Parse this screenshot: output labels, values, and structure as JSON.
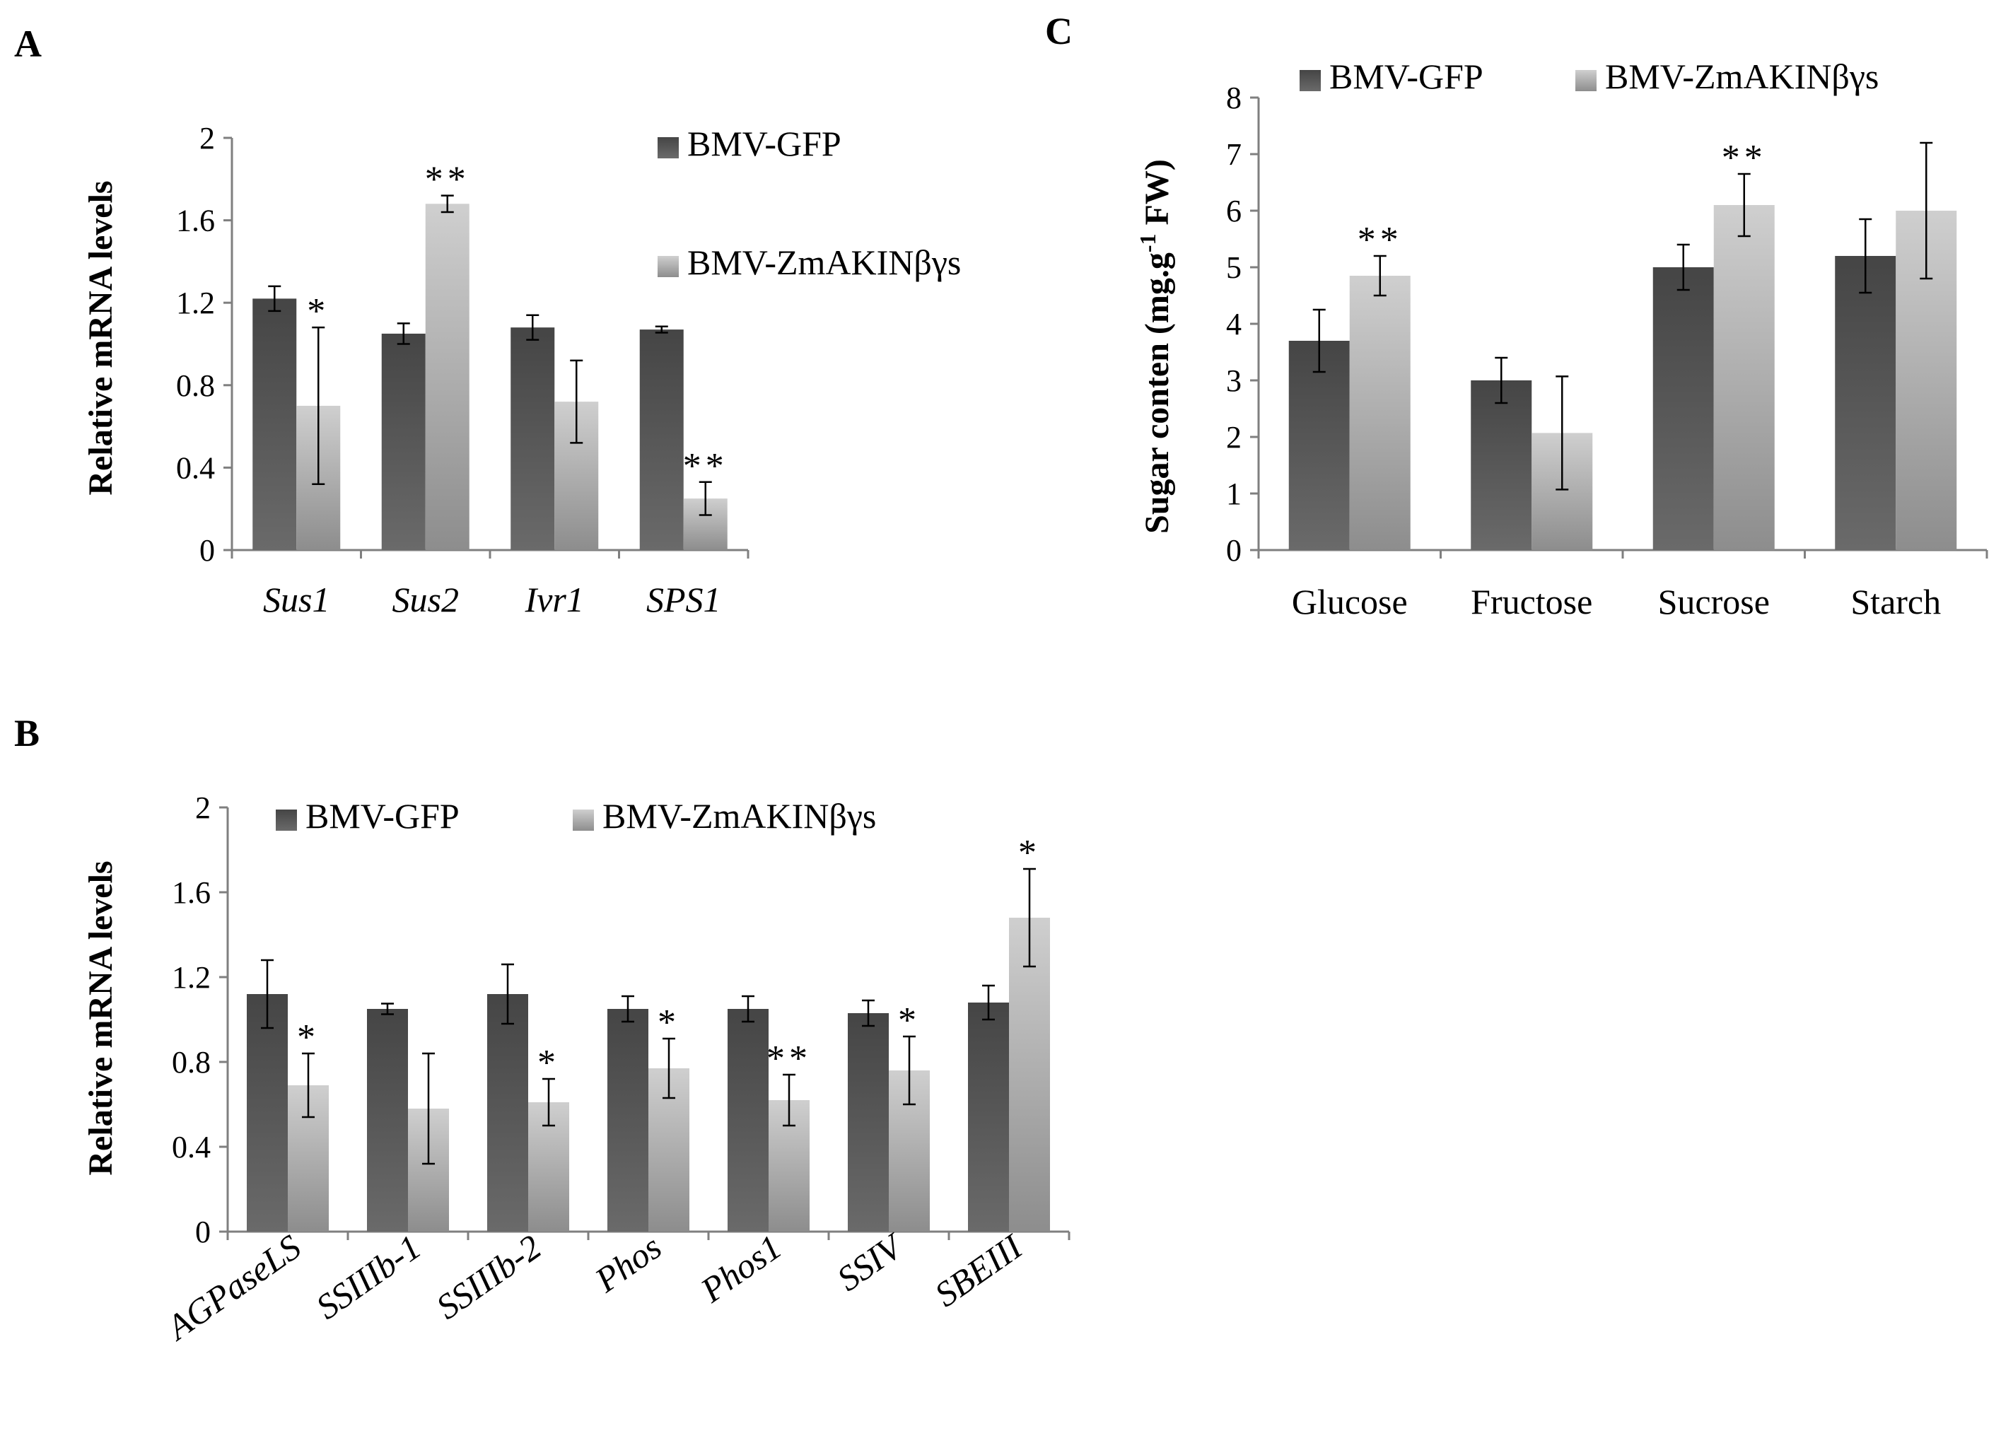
{
  "figure": {
    "colors": {
      "dark_top": "#454545",
      "dark_bottom": "#6a6a6a",
      "light_top": "#cfcfcf",
      "light_bottom": "#8d8d8d"
    }
  },
  "chart_data": [
    {
      "panel": "A",
      "type": "bar",
      "ylabel": "Relative mRNA levels",
      "ylim": [
        0,
        2
      ],
      "yticks": [
        "0",
        "0.4",
        "0.8",
        "1.2",
        "1.6",
        "2"
      ],
      "categories": [
        "Sus1",
        "Sus2",
        "Ivr1",
        "SPS1"
      ],
      "category_style": "italic",
      "legend": {
        "placement": "right",
        "items": [
          "BMV-GFP",
          "BMV-ZmAKINβγs"
        ]
      },
      "series": [
        {
          "name": "BMV-GFP",
          "values": [
            1.22,
            1.05,
            1.08,
            1.07
          ],
          "errors": [
            0.06,
            0.05,
            0.06,
            0.015
          ],
          "significance": [
            "",
            "",
            "",
            ""
          ]
        },
        {
          "name": "BMV-ZmAKINβγs",
          "values": [
            0.7,
            1.68,
            0.72,
            0.25
          ],
          "errors": [
            0.38,
            0.04,
            0.2,
            0.08
          ],
          "significance": [
            "*",
            "**",
            "",
            "**"
          ]
        }
      ]
    },
    {
      "panel": "B",
      "type": "bar",
      "ylabel": "Relative mRNA  levels",
      "ylim": [
        0,
        2
      ],
      "yticks": [
        "0",
        "0.4",
        "0.8",
        "1.2",
        "1.6",
        "2"
      ],
      "categories": [
        "AGPaseLS",
        "SSIIIb-1",
        "SSIIIb-2",
        "Phos",
        "Phos1",
        "SSIV",
        "SBEIII"
      ],
      "category_style": "italic-rotated",
      "legend": {
        "placement": "top",
        "items": [
          "BMV-GFP",
          "BMV-ZmAKINβγs"
        ]
      },
      "series": [
        {
          "name": "BMV-GFP",
          "values": [
            1.12,
            1.05,
            1.12,
            1.05,
            1.05,
            1.03,
            1.08
          ],
          "errors": [
            0.16,
            0.025,
            0.14,
            0.06,
            0.06,
            0.06,
            0.08
          ],
          "significance": [
            "",
            "",
            "",
            "",
            "",
            "",
            ""
          ]
        },
        {
          "name": "BMV-ZmAKINβγs",
          "values": [
            0.69,
            0.58,
            0.61,
            0.77,
            0.62,
            0.76,
            1.48
          ],
          "errors": [
            0.15,
            0.26,
            0.11,
            0.14,
            0.12,
            0.16,
            0.23
          ],
          "significance": [
            "*",
            "",
            "*",
            "*",
            "**",
            "*",
            "*"
          ]
        }
      ]
    },
    {
      "panel": "C",
      "type": "bar",
      "ylabel": "Sugar conten (mg.g",
      "ylabel_sup": "-1",
      "ylabel_end": " FW)",
      "ylim": [
        0,
        8
      ],
      "yticks": [
        "0",
        "1",
        "2",
        "3",
        "4",
        "5",
        "6",
        "7",
        "8"
      ],
      "categories": [
        "Glucose",
        "Fructose",
        "Sucrose",
        "Starch"
      ],
      "category_style": "normal",
      "legend": {
        "placement": "top",
        "items": [
          "BMV-GFP",
          "BMV-ZmAKINβγs"
        ]
      },
      "series": [
        {
          "name": "BMV-GFP",
          "values": [
            3.7,
            3.0,
            5.0,
            5.2
          ],
          "errors": [
            0.55,
            0.4,
            0.4,
            0.65
          ],
          "significance": [
            "",
            "",
            "",
            ""
          ]
        },
        {
          "name": "BMV-ZmAKINβγs",
          "values": [
            4.85,
            2.07,
            6.1,
            6.0
          ],
          "errors": [
            0.35,
            1.0,
            0.55,
            1.2
          ],
          "significance": [
            "**",
            "",
            "**",
            ""
          ]
        }
      ]
    }
  ]
}
